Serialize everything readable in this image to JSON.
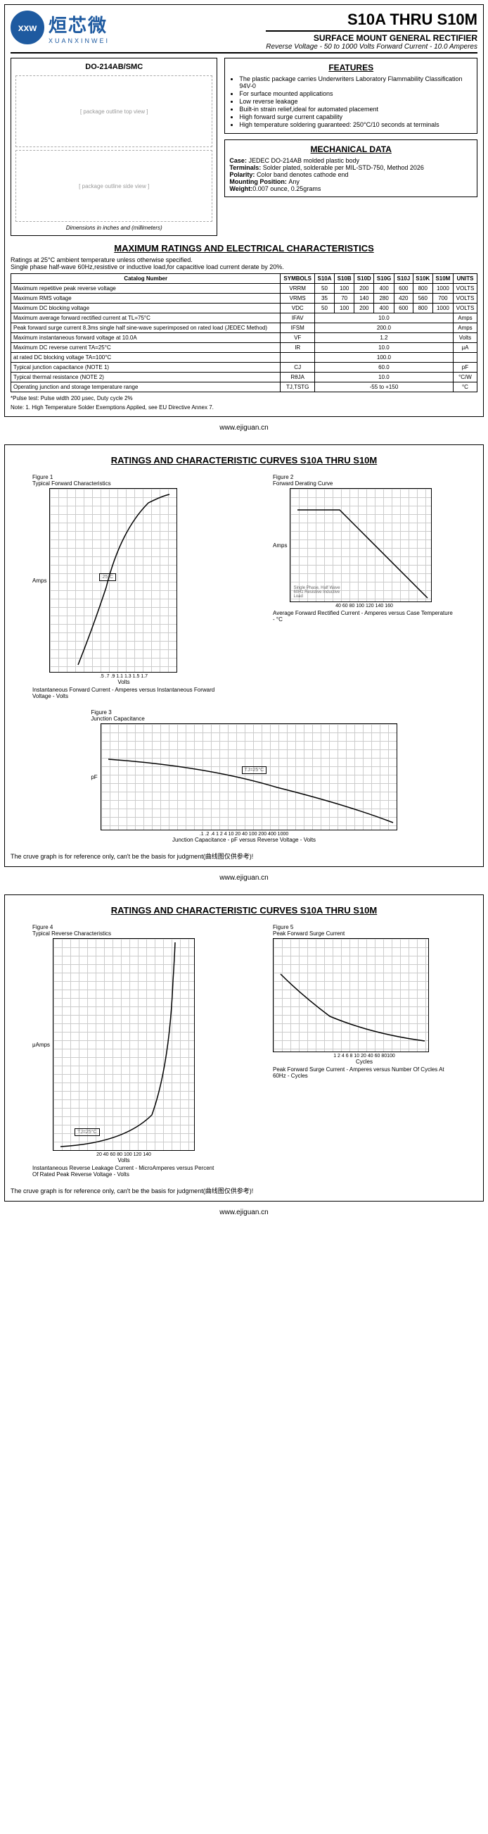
{
  "header": {
    "logo_abbrev": "xxw",
    "logo_cn": "烜芯微",
    "logo_en": "XUANXINWEI",
    "title": "S10A THRU S10M",
    "subtitle": "SURFACE MOUNT GENERAL RECTIFIER",
    "subtitle2": "Reverse Voltage - 50 to 1000 Volts    Forward Current - 10.0 Amperes"
  },
  "package": {
    "label": "DO-214AB/SMC",
    "dims_note": "Dimensions in inches and (millimeters)"
  },
  "features": {
    "title": "FEATURES",
    "items": [
      "The plastic package carries Underwriters Laboratory Flammability Classification 94V-0",
      "For surface mounted applications",
      "Low reverse leakage",
      "Built-in strain relief,ideal for automated placement",
      "High forward surge current capability",
      "High temperature soldering guaranteed: 250°C/10 seconds at terminals"
    ]
  },
  "mechanical": {
    "title": "MECHANICAL DATA",
    "case": "JEDEC DO-214AB molded plastic body",
    "terminals": "Solder plated, solderable per MIL-STD-750, Method 2026",
    "polarity": "Color band denotes cathode end",
    "mounting": "Any",
    "weight": "0.007 ounce, 0.25grams"
  },
  "ratings": {
    "title": "MAXIMUM RATINGS AND ELECTRICAL CHARACTERISTICS",
    "note": "Ratings at 25°C ambient temperature unless otherwise specified.\nSingle phase half-wave 60Hz,resistive or inductive load,for capacitive load current derate by 20%.",
    "header": [
      "Catalog  Number",
      "SYMBOLS",
      "S10A",
      "S10B",
      "S10D",
      "S10G",
      "S10J",
      "S10K",
      "S10M",
      "UNITS"
    ],
    "rows": [
      {
        "label": "Maximum repetitive peak reverse voltage",
        "sym": "VRRM",
        "vals": [
          "50",
          "100",
          "200",
          "400",
          "600",
          "800",
          "1000"
        ],
        "unit": "VOLTS"
      },
      {
        "label": "Maximum RMS voltage",
        "sym": "VRMS",
        "vals": [
          "35",
          "70",
          "140",
          "280",
          "420",
          "560",
          "700"
        ],
        "unit": "VOLTS"
      },
      {
        "label": "Maximum DC blocking voltage",
        "sym": "VDC",
        "vals": [
          "50",
          "100",
          "200",
          "400",
          "600",
          "800",
          "1000"
        ],
        "unit": "VOLTS"
      },
      {
        "label": "Maximum average forward rectified current at TL=75°C",
        "sym": "IFAV",
        "span": "10.0",
        "unit": "Amps"
      },
      {
        "label": "Peak forward surge current 8.3ms single half sine-wave superimposed on rated load (JEDEC Method)",
        "sym": "IFSM",
        "span": "200.0",
        "unit": "Amps"
      },
      {
        "label": "Maximum instantaneous forward voltage at 10.0A",
        "sym": "VF",
        "span": "1.2",
        "unit": "Volts"
      },
      {
        "label": "Maximum DC reverse current    TA=25°C",
        "sym": "IR",
        "span": "10.0",
        "unit": "μA"
      },
      {
        "label": "at rated DC blocking voltage   TA=100°C",
        "sym": "",
        "span": "100.0",
        "unit": ""
      },
      {
        "label": "Typical junction capacitance (NOTE 1)",
        "sym": "CJ",
        "span": "60.0",
        "unit": "pF"
      },
      {
        "label": "Typical thermal resistance (NOTE 2)",
        "sym": "RθJA",
        "span": "10.0",
        "unit": "°C/W"
      },
      {
        "label": "Operating junction and storage temperature range",
        "sym": "TJ,TSTG",
        "span": "-55 to +150",
        "unit": "°C"
      }
    ],
    "footnote_star": "*Pulse test: Pulse width 200 μsec, Duty cycle 2%",
    "footnote_note": "Note:   1.  High Temperature Solder Exemptions Applied, see EU Directive Annex 7."
  },
  "footer": "www.ejiguan.cn",
  "curves": {
    "title": "RATINGS AND CHARACTERISTIC CURVES S10A THRU S10M",
    "fig1": {
      "t": "Figure 1",
      "sub": "Typical Forward Characteristics",
      "ylabel": "Amps",
      "xlabel": "Volts",
      "caption": "Instantaneous Forward Current - Amperes versus Instantaneous Forward Voltage - Volts",
      "yticks": "100,60,40,20,10,6,4,2,1,.6,.4,.2,.1,.06,.04,.02,.01",
      "xticks": ".5  .7  .9  1.1  1.3  1.5  1.7",
      "note": "25°C"
    },
    "fig2": {
      "t": "Figure 2",
      "sub": "Forward Derating Curve",
      "ylabel": "Amps",
      "caption": "Average Forward Rectified Current -  Amperes versus Case Temperature - °C",
      "yticks": "12,10,8,6,4,2,0",
      "xticks": "40  60  80  100  120  140  160",
      "note": "Single Phase, Half Wave 60Hz Resistive Inductive Load"
    },
    "fig3": {
      "t": "Figure 3",
      "sub": "Junction Capacitance",
      "ylabel": "pF",
      "caption": "Junction Capacitance - pF versus Reverse Voltage - Volts",
      "xticks": ".1  .2  .4  1  2  4  10  20  40  100  200  400  1000",
      "yticks": "1000,600,400,200,100,60,40,20,10",
      "note": "TJ=25°C"
    },
    "fig4": {
      "t": "Figure 4",
      "sub": "Typical Reverse Characteristics",
      "ylabel": "μAmps",
      "xlabel": "Volts",
      "caption": "Instantaneous Reverse Leakage Current - MicroAmperes versus Percent Of Rated Peak Reverse Voltage - Volts",
      "yticks": "1000,600,400,200,100,60,40,20,10,6,4,2,1,.6,.4,.2,.1,.06,.04,.02,.01",
      "xticks": "20  40  60  80  100  120  140",
      "note": "TJ=25°C"
    },
    "fig5": {
      "t": "Figure 5",
      "sub": "Peak Forward Surge Current",
      "caption": "Peak Forward Surge Current - Amperes versus Number Of Cycles At 60Hz - Cycles",
      "yticks": "300,250,200,150,100,50,0",
      "xticks": "1  2  4  6  8 10  20  40  60 80100",
      "xlabel": "Cycles"
    },
    "disclaimer": "The cruve graph is for reference only, can't be the basis for judgment(曲线图仅供参考)!"
  }
}
